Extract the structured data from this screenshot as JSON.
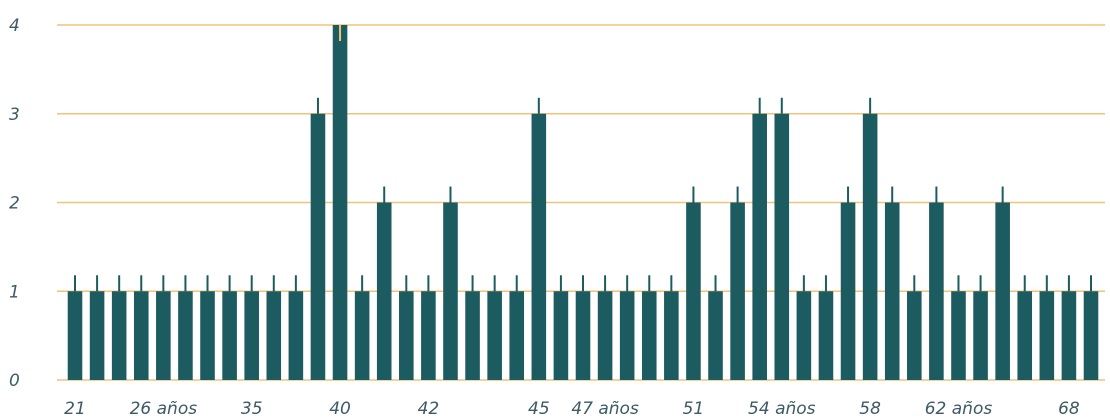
{
  "chart_data": {
    "type": "bar",
    "title": "",
    "xlabel": "",
    "ylabel": "",
    "ylim": [
      0,
      4
    ],
    "yticks": [
      0,
      1,
      2,
      3,
      4
    ],
    "grid": true,
    "legend": "none",
    "colors": {
      "bar": "#1c5c60",
      "gridline": "#f2c27a",
      "error_bar": "#1c5c60",
      "tick_text": "#3d5a66"
    },
    "x_tick_labels": [
      "21",
      "26 años",
      "35",
      "40",
      "42",
      "45",
      "47 años",
      "51",
      "54 años",
      "58",
      "62 años",
      "68"
    ],
    "values": [
      1,
      1,
      1,
      1,
      1,
      1,
      1,
      1,
      1,
      1,
      1,
      3,
      4,
      1,
      2,
      1,
      1,
      2,
      1,
      1,
      1,
      3,
      1,
      1,
      1,
      1,
      1,
      1,
      2,
      1,
      2,
      3,
      3,
      1,
      1,
      2,
      3,
      2,
      1,
      2,
      1,
      1,
      2,
      1,
      1,
      1,
      1
    ],
    "error_bar_plus": 0.18
  }
}
